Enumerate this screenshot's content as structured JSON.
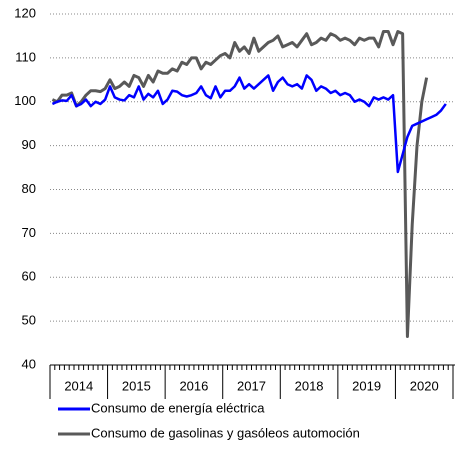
{
  "chart_data": {
    "type": "line",
    "x_groups": [
      "2014",
      "2015",
      "2016",
      "2017",
      "2018",
      "2019",
      "2020"
    ],
    "categories": [
      null,
      null,
      null,
      null,
      null,
      null,
      null,
      null,
      null,
      null,
      null,
      null,
      null,
      null,
      null,
      null,
      null,
      null,
      null,
      null,
      null,
      null,
      null,
      null,
      null,
      null,
      null,
      null,
      null,
      null,
      null,
      null,
      null,
      null,
      null,
      null,
      null,
      null,
      null,
      null,
      null,
      null,
      null,
      null,
      null,
      null,
      null,
      null,
      null,
      null,
      null,
      null,
      null,
      null,
      null,
      null,
      null,
      null,
      null,
      null,
      null,
      null,
      null,
      null,
      null,
      null,
      null,
      null,
      null,
      null,
      null,
      null,
      null,
      null,
      null,
      null,
      null,
      null,
      null,
      null,
      null,
      null,
      null
    ],
    "series": [
      {
        "name": "Consumo de energía eléctrica",
        "color": "#0000ff",
        "values": [
          99.5,
          100,
          100.3,
          100.2,
          101.5,
          99,
          99.5,
          100.5,
          99,
          100,
          99.5,
          100.5,
          103.5,
          101,
          100.5,
          100.3,
          101.5,
          101,
          103.5,
          100.5,
          101.8,
          101,
          102.5,
          99.5,
          100.5,
          102.5,
          102.3,
          101.5,
          101.2,
          101.5,
          102,
          103.5,
          101.5,
          100.8,
          103.5,
          101,
          102.5,
          102.5,
          103.5,
          105.5,
          103,
          104,
          103,
          104,
          105,
          106,
          102.5,
          104.5,
          105.5,
          104,
          103.5,
          104,
          103,
          106,
          105,
          102.5,
          103.5,
          103,
          102,
          102.5,
          101.5,
          102,
          101.5,
          100,
          100.5,
          100,
          99,
          101,
          100.5,
          101,
          100.5,
          101.5,
          84,
          88,
          92,
          94.5,
          95,
          95.5,
          96,
          96.5,
          97,
          98,
          99.5
        ]
      },
      {
        "name": "Consumo de gasolinas y gasóleos automoción",
        "color": "#595959",
        "values": [
          100.5,
          100,
          101.5,
          101.5,
          102,
          99,
          100,
          101.5,
          102.5,
          102.5,
          102.3,
          103,
          105,
          103,
          103.5,
          104.5,
          103.5,
          106,
          105.5,
          103.5,
          106,
          104.5,
          107,
          106.5,
          106.5,
          107.5,
          107,
          109,
          108.5,
          110,
          110,
          107.5,
          109,
          108.5,
          109.5,
          110.5,
          111,
          110,
          113.5,
          111.5,
          112.5,
          111,
          114.5,
          111.5,
          112.5,
          113.5,
          114,
          115,
          112.5,
          113,
          113.5,
          112.5,
          114,
          115.5,
          113,
          113.5,
          114.5,
          114,
          115.5,
          115,
          114,
          114.5,
          114,
          113,
          114.5,
          114,
          114.5,
          114.5,
          112.5,
          116,
          116,
          113,
          116,
          115.5,
          46.5,
          72,
          90,
          100,
          105.5,
          null,
          null,
          null,
          null
        ]
      }
    ],
    "ylim": [
      40,
      120
    ],
    "yticks": [
      40,
      50,
      60,
      70,
      80,
      90,
      100,
      110,
      120
    ],
    "grid": true
  }
}
